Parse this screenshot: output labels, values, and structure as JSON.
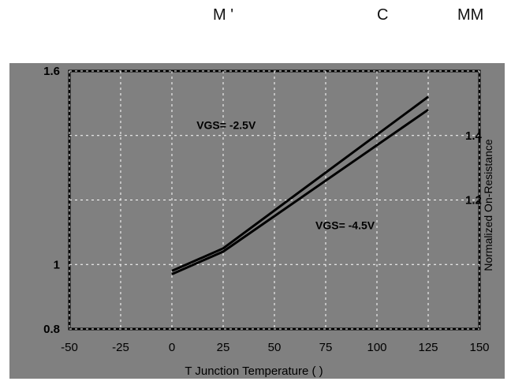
{
  "header": {
    "fragments": [
      "M '",
      "C",
      "MM"
    ]
  },
  "chart_data": {
    "type": "line",
    "title": "",
    "xlabel": "T  Junction Temperature ( )",
    "ylabel": "Normalized On-Resistance",
    "xlim": [
      -50,
      150
    ],
    "ylim": [
      0.8,
      1.6
    ],
    "x_ticks": [
      "-50",
      "-25",
      "0",
      "25",
      "50",
      "75",
      "100",
      "125",
      "150"
    ],
    "y_ticks_left": [
      "1.6",
      "1",
      "0.8"
    ],
    "y_ticks_right": [
      "1.4",
      "1.2"
    ],
    "grid": true,
    "series": [
      {
        "name": "VGS= -2.5V",
        "x": [
          0,
          25,
          125
        ],
        "y": [
          0.98,
          1.05,
          1.52
        ],
        "label_pos": [
          12,
          1.42
        ]
      },
      {
        "name": "VGS= -4.5V",
        "x": [
          0,
          25,
          125
        ],
        "y": [
          0.97,
          1.04,
          1.48
        ],
        "label_pos": [
          70,
          1.11
        ]
      }
    ],
    "colors": {
      "background": "#808080",
      "line": "#000000",
      "grid": "#ffffff",
      "text": "#000000"
    }
  }
}
